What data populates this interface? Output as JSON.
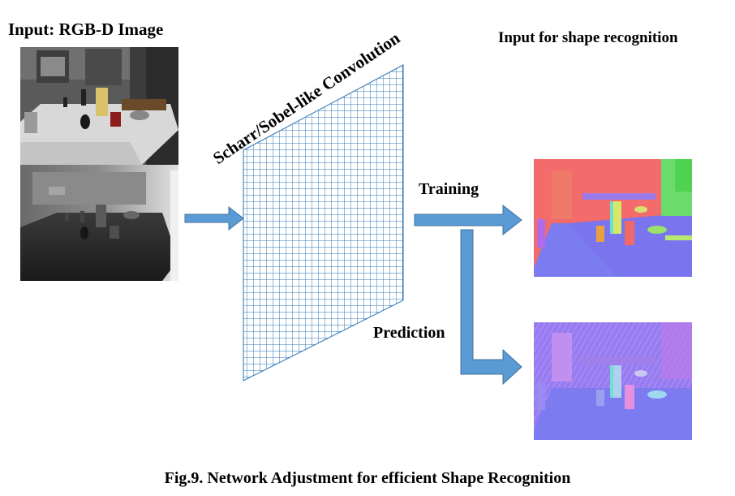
{
  "labels": {
    "input_title": "Input: RGB-D Image",
    "shape_title": "Input for shape recognition",
    "convolution": "Scharr/Sobel-like Convolution",
    "training": "Training",
    "prediction": "Prediction",
    "caption": "Fig.9. Network Adjustment for efficient Shape Recognition"
  },
  "colors": {
    "arrow_fill": "#5b9bd5",
    "arrow_stroke": "#41719c",
    "grid_line": "#2e75b6",
    "normal_bg_training": "#f46b6b",
    "normal_floor": "#7a7cf0",
    "normal_bg_prediction": "#a67ff0"
  },
  "images": [
    {
      "name": "rgb-kitchen-image"
    },
    {
      "name": "depth-kitchen-image"
    },
    {
      "name": "training-normal-map"
    },
    {
      "name": "prediction-normal-map"
    }
  ]
}
